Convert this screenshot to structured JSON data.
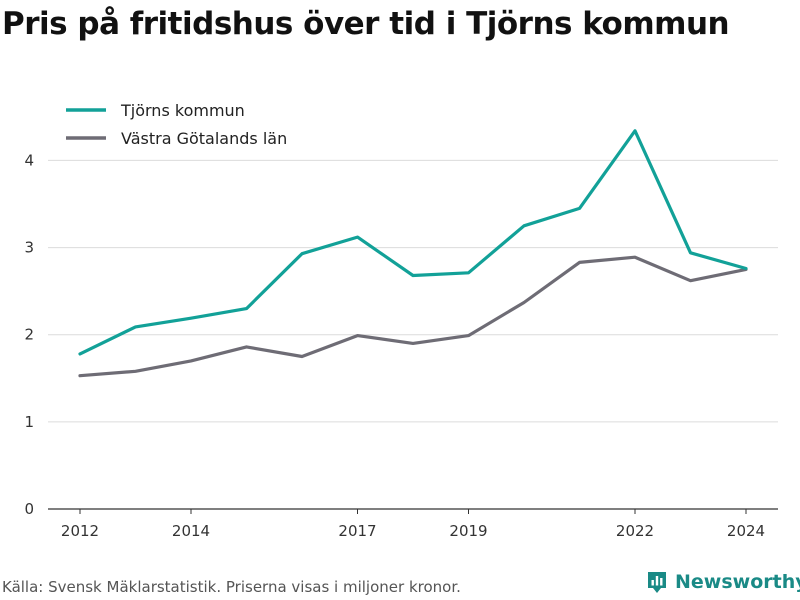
{
  "title": "Pris på fritidshus över tid i Tjörns kommun",
  "source": "Källa: Svensk Mäklarstatistik. Priserna visas i miljoner kronor.",
  "brand": {
    "name": "Newsworthy",
    "icon": "newsworthy-bar-chart-icon",
    "color": "#1a8a86"
  },
  "chart_data": {
    "type": "line",
    "title": "Pris på fritidshus över tid i Tjörns kommun",
    "xlabel": "",
    "ylabel": "",
    "x": [
      2012,
      2013,
      2014,
      2015,
      2016,
      2017,
      2018,
      2019,
      2020,
      2021,
      2022,
      2023,
      2024
    ],
    "x_tick_labels": [
      "2012",
      "2014",
      "2017",
      "2019",
      "2022",
      "2024"
    ],
    "y_ticks": [
      0,
      1,
      2,
      3,
      4
    ],
    "ylim": [
      0,
      4.9
    ],
    "grid": true,
    "legend_position": "top-left",
    "series": [
      {
        "name": "Tjörns kommun",
        "color": "#12a198",
        "values": [
          1.78,
          2.09,
          2.19,
          2.3,
          2.93,
          3.12,
          2.68,
          2.71,
          3.25,
          3.45,
          4.34,
          2.94,
          2.76
        ]
      },
      {
        "name": "Västra Götalands län",
        "color": "#6e6c75",
        "values": [
          1.53,
          1.58,
          1.7,
          1.86,
          1.75,
          1.99,
          1.9,
          1.99,
          2.37,
          2.83,
          2.89,
          2.62,
          2.75
        ]
      }
    ]
  }
}
